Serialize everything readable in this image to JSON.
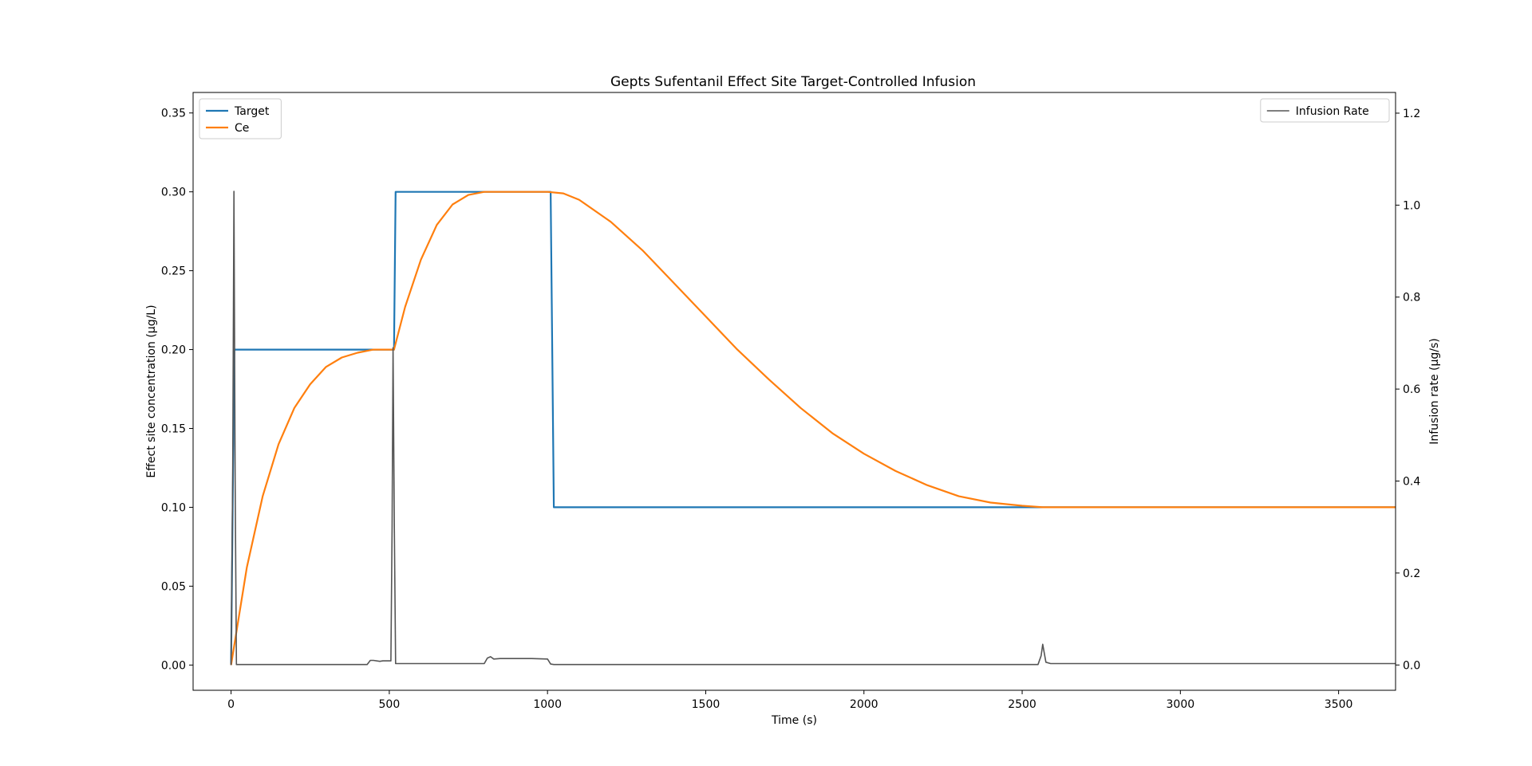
{
  "chart_data": {
    "type": "line",
    "title": "Gepts Sufentanil Effect Site Target-Controlled Infusion",
    "xlabel": "Time (s)",
    "ylabel": "Effect site concentration (μg/L)",
    "y2label": "Infusion rate (μg/s)",
    "xlim": [
      -120,
      3680
    ],
    "ylim": [
      -0.016,
      0.363
    ],
    "y2lim": [
      -0.055,
      1.245
    ],
    "x_ticks": [
      0,
      500,
      1000,
      1500,
      2000,
      2500,
      3000,
      3500
    ],
    "x_tick_labels": [
      "0",
      "500",
      "1000",
      "1500",
      "2000",
      "2500",
      "3000",
      "3500"
    ],
    "y_ticks": [
      0.0,
      0.05,
      0.1,
      0.15,
      0.2,
      0.25,
      0.3,
      0.35
    ],
    "y_tick_labels": [
      "0.00",
      "0.05",
      "0.10",
      "0.15",
      "0.20",
      "0.25",
      "0.30",
      "0.35"
    ],
    "y2_ticks": [
      0.0,
      0.2,
      0.4,
      0.6,
      0.8,
      1.0,
      1.2
    ],
    "y2_tick_labels": [
      "0.0",
      "0.2",
      "0.4",
      "0.6",
      "0.8",
      "1.0",
      "1.2"
    ],
    "grid": false,
    "legend_left_placement": "top-left",
    "legend_right_placement": "top-right",
    "series": [
      {
        "name": "Target",
        "axis": "left",
        "color": "#1f77b4",
        "x": [
          0,
          10,
          515,
          520,
          1010,
          1020,
          3680
        ],
        "y": [
          0,
          0.2,
          0.2,
          0.3,
          0.3,
          0.1,
          0.1
        ]
      },
      {
        "name": "Ce",
        "axis": "left",
        "color": "#ff7f0e",
        "x": [
          0,
          50,
          100,
          150,
          200,
          250,
          300,
          350,
          400,
          450,
          515,
          550,
          600,
          650,
          700,
          750,
          800,
          900,
          1000,
          1050,
          1100,
          1200,
          1300,
          1400,
          1500,
          1600,
          1700,
          1800,
          1900,
          2000,
          2100,
          2200,
          2300,
          2400,
          2500,
          2565,
          2600,
          3000,
          3500,
          3680
        ],
        "y": [
          0,
          0.062,
          0.107,
          0.14,
          0.163,
          0.178,
          0.189,
          0.195,
          0.198,
          0.2,
          0.2,
          0.227,
          0.257,
          0.279,
          0.292,
          0.298,
          0.3,
          0.3,
          0.3,
          0.299,
          0.295,
          0.281,
          0.263,
          0.242,
          0.221,
          0.2,
          0.181,
          0.163,
          0.147,
          0.134,
          0.123,
          0.114,
          0.107,
          0.103,
          0.101,
          0.1,
          0.1,
          0.1,
          0.1,
          0.1
        ]
      },
      {
        "name": "Infusion Rate",
        "axis": "right",
        "color": "#555555",
        "x": [
          0,
          5,
          9,
          13,
          17,
          25,
          300,
          430,
          440,
          450,
          470,
          480,
          500,
          505,
          509,
          512,
          516,
          520,
          525,
          600,
          800,
          810,
          820,
          830,
          850,
          950,
          1000,
          1010,
          1020,
          1500,
          2000,
          2400,
          2550,
          2560,
          2565,
          2575,
          2590,
          2610,
          2650,
          3000,
          3680
        ],
        "y": [
          0,
          0.4,
          1.03,
          0.4,
          0.001,
          0.001,
          0.001,
          0.001,
          0.01,
          0.01,
          0.008,
          0.009,
          0.009,
          0.009,
          0.3,
          0.69,
          0.3,
          0.003,
          0.003,
          0.003,
          0.003,
          0.015,
          0.018,
          0.013,
          0.014,
          0.014,
          0.013,
          0.002,
          0.001,
          0.001,
          0.001,
          0.001,
          0.001,
          0.02,
          0.045,
          0.006,
          0.003,
          0.003,
          0.003,
          0.003,
          0.003
        ]
      }
    ]
  }
}
